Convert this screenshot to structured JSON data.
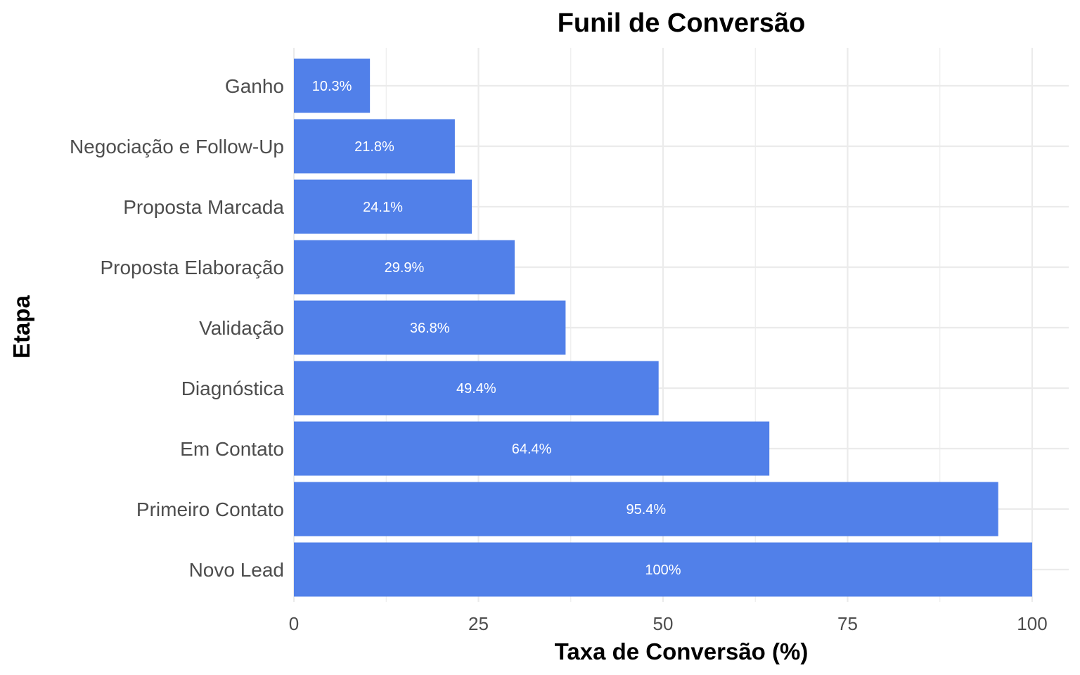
{
  "chart_data": {
    "type": "bar",
    "orientation": "horizontal",
    "title": "Funil de Conversão",
    "xlabel": "Taxa de Conversão (%)",
    "ylabel": "Etapa",
    "categories": [
      "Novo Lead",
      "Primeiro Contato",
      "Em Contato",
      "Diagnóstica",
      "Validação",
      "Proposta Elaboração",
      "Proposta Marcada",
      "Negociação e Follow-Up",
      "Ganho"
    ],
    "values": [
      100,
      95.4,
      64.4,
      49.4,
      36.8,
      29.9,
      24.1,
      21.8,
      10.3
    ],
    "data_labels": [
      "100%",
      "95.4%",
      "64.4%",
      "49.4%",
      "36.8%",
      "29.9%",
      "24.1%",
      "21.8%",
      "10.3%"
    ],
    "xlim": [
      0,
      100
    ],
    "x_ticks": [
      0,
      25,
      50,
      75,
      100
    ],
    "x_tick_labels": [
      "0",
      "25",
      "50",
      "75",
      "100"
    ],
    "grid": true,
    "legend": "none",
    "colors": {
      "bar": "#5180e9",
      "grid": "#ebebeb",
      "tick_text": "#4d4d4d",
      "title_text": "#000000",
      "label_text": "#ffffff"
    }
  }
}
